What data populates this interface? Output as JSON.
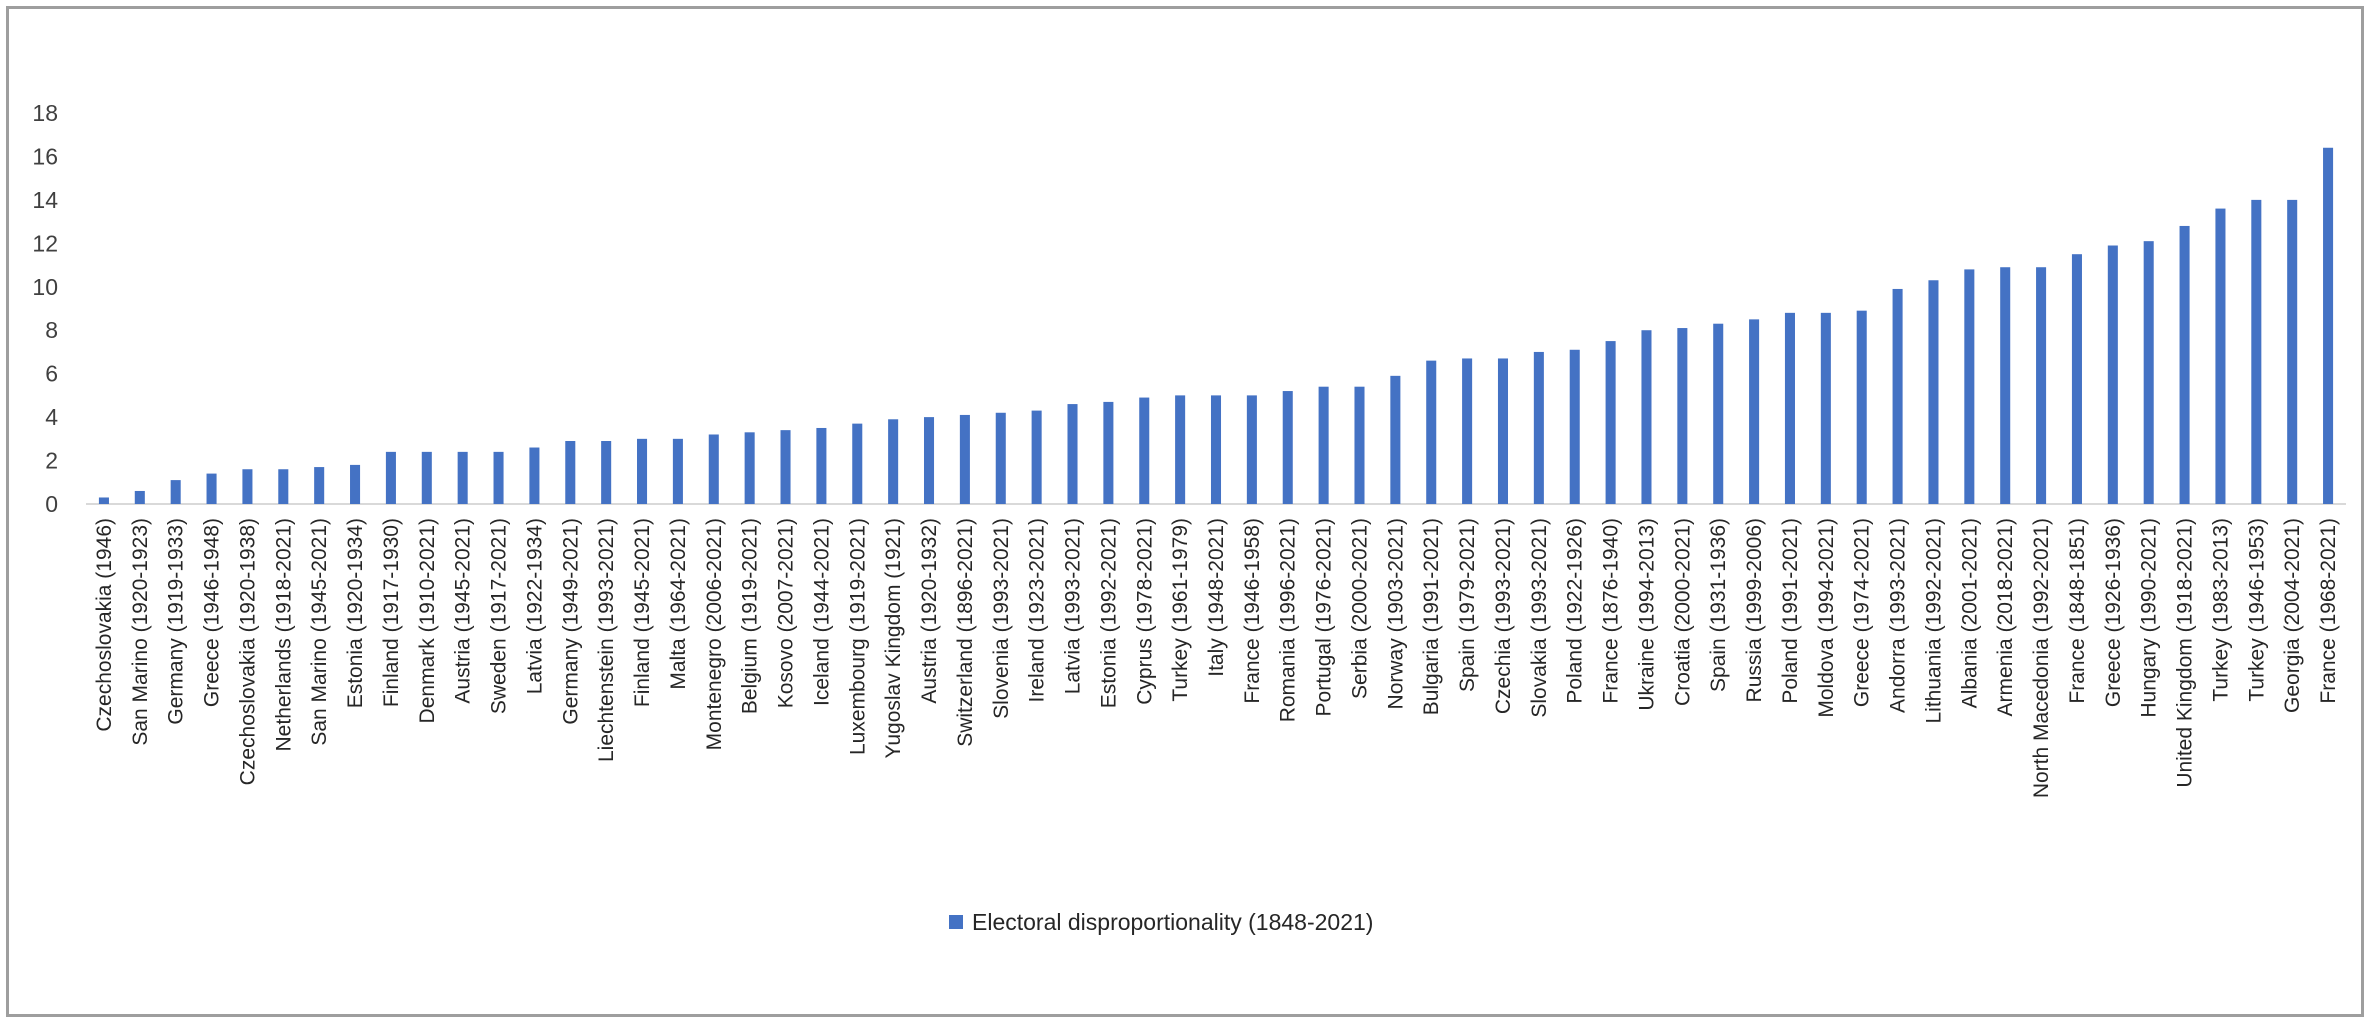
{
  "chart_data": {
    "type": "bar",
    "categories": [
      "Czechoslovakia (1946)",
      "San Marino (1920-1923)",
      "Germany (1919-1933)",
      "Greece (1946-1948)",
      "Czechoslovakia (1920-1938)",
      "Netherlands (1918-2021)",
      "San Marino (1945-2021)",
      "Estonia (1920-1934)",
      "Finland (1917-1930)",
      "Denmark (1910-2021)",
      "Austria (1945-2021)",
      "Sweden (1917-2021)",
      "Latvia (1922-1934)",
      "Germany (1949-2021)",
      "Liechtenstein (1993-2021)",
      "Finland (1945-2021)",
      "Malta (1964-2021)",
      "Montenegro (2006-2021)",
      "Belgium (1919-2021)",
      "Kosovo (2007-2021)",
      "Iceland (1944-2021)",
      "Luxembourg (1919-2021)",
      "Yugoslav Kingdom (1921)",
      "Austria (1920-1932)",
      "Switzerland (1896-2021)",
      "Slovenia (1993-2021)",
      "Ireland (1923-2021)",
      "Latvia (1993-2021)",
      "Estonia (1992-2021)",
      "Cyprus (1978-2021)",
      "Turkey (1961-1979)",
      "Italy (1948-2021)",
      "France (1946-1958)",
      "Romania (1996-2021)",
      "Portugal (1976-2021)",
      "Serbia (2000-2021)",
      "Norway (1903-2021)",
      "Bulgaria (1991-2021)",
      "Spain (1979-2021)",
      "Czechia (1993-2021)",
      "Slovakia (1993-2021)",
      "Poland (1922-1926)",
      "France (1876-1940)",
      "Ukraine (1994-2013)",
      "Croatia (2000-2021)",
      "Spain (1931-1936)",
      "Russia (1999-2006)",
      "Poland (1991-2021)",
      "Moldova (1994-2021)",
      "Greece (1974-2021)",
      "Andorra (1993-2021)",
      "Lithuania (1992-2021)",
      "Albania (2001-2021)",
      "Armenia (2018-2021)",
      "North Macedonia (1992-2021)",
      "France (1848-1851)",
      "Greece (1926-1936)",
      "Hungary (1990-2021)",
      "United Kingdom (1918-2021)",
      "Turkey (1983-2013)",
      "Turkey (1946-1953)",
      "Georgia (2004-2021)",
      "France (1968-2021)"
    ],
    "series": [
      {
        "name": "Electoral disproportionality (1848-2021)",
        "values": [
          0.3,
          0.6,
          1.1,
          1.4,
          1.6,
          1.6,
          1.7,
          1.8,
          2.4,
          2.4,
          2.4,
          2.4,
          2.6,
          2.9,
          2.9,
          3.0,
          3.0,
          3.2,
          3.3,
          3.4,
          3.5,
          3.7,
          3.9,
          4.0,
          4.1,
          4.2,
          4.3,
          4.6,
          4.7,
          4.9,
          5.0,
          5.0,
          5.0,
          5.2,
          5.4,
          5.4,
          5.9,
          6.6,
          6.7,
          6.7,
          7.0,
          7.1,
          7.5,
          8.0,
          8.1,
          8.3,
          8.5,
          8.8,
          8.8,
          8.9,
          9.9,
          10.3,
          10.8,
          10.9,
          10.9,
          11.5,
          11.9,
          12.1,
          12.8,
          13.6,
          14.0,
          14.0,
          16.4
        ]
      }
    ],
    "title": "",
    "xlabel": "",
    "ylabel": "",
    "ylim": [
      0,
      18
    ],
    "yticks": [
      "0",
      "2",
      "4",
      "6",
      "8",
      "10",
      "12",
      "14",
      "16",
      "18"
    ],
    "grid": false,
    "legend_position": "bottom",
    "colors": {
      "bar": "#4472C4",
      "axis": "#d9d9d9",
      "frame": "#9e9e9e"
    }
  }
}
